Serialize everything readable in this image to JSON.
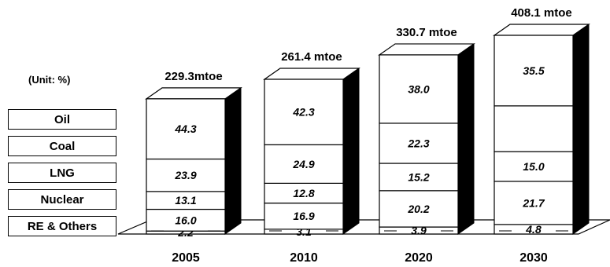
{
  "unit_note": "(Unit: %)",
  "legend": [
    "Oil",
    "Coal",
    "LNG",
    "Nuclear",
    "RE & Others"
  ],
  "chart_data": {
    "type": "bar",
    "stacked": true,
    "unit": "%",
    "categories": [
      "2005",
      "2010",
      "2020",
      "2030"
    ],
    "totals": [
      "229.3mtoe",
      "261.4 mtoe",
      "330.7 mtoe",
      "408.1 mtoe"
    ],
    "series": [
      {
        "name": "RE & Others",
        "values": [
          2.2,
          3.1,
          3.9,
          4.8
        ],
        "labels": [
          "2.2",
          "3.1",
          "3.9",
          "4.8"
        ]
      },
      {
        "name": "Nuclear",
        "values": [
          16.0,
          16.9,
          20.2,
          21.7
        ],
        "labels": [
          "16.0",
          "16.9",
          "20.2",
          "21.7"
        ]
      },
      {
        "name": "LNG",
        "values": [
          13.1,
          12.8,
          15.2,
          15.0
        ],
        "labels": [
          "13.1",
          "12.8",
          "15.2",
          "15.0"
        ]
      },
      {
        "name": "Coal",
        "values": [
          23.9,
          24.9,
          22.3,
          23.0
        ],
        "labels": [
          "23.9",
          "24.9",
          "22.3",
          ""
        ]
      },
      {
        "name": "Oil",
        "values": [
          44.3,
          42.3,
          38.0,
          35.5
        ],
        "labels": [
          "44.3",
          "42.3",
          "38.0",
          "35.5"
        ]
      }
    ],
    "colors": {
      "face": "#ffffff",
      "side": "#000000",
      "top": "#ffffff",
      "stroke": "#000000"
    }
  }
}
